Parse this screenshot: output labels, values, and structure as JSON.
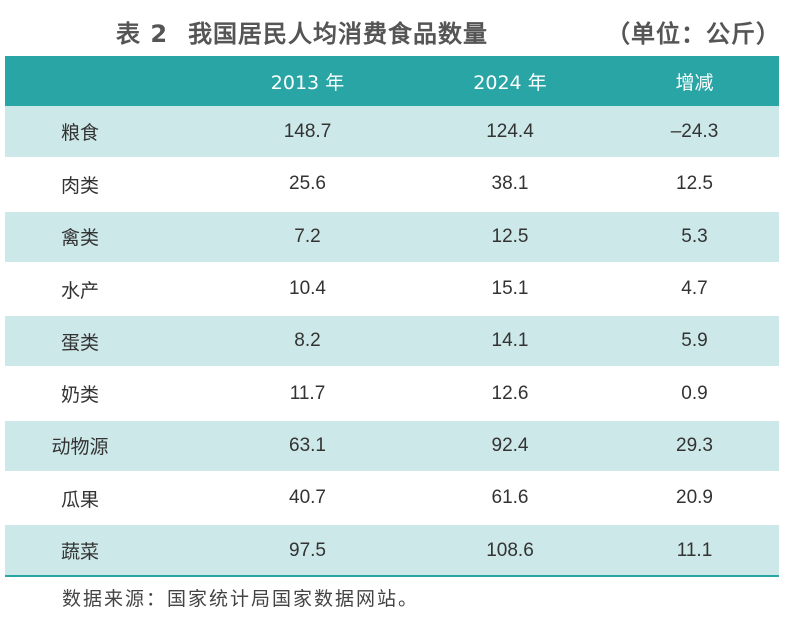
{
  "title": {
    "number": "表 2",
    "text": "我国居民人均消费食品数量",
    "unit": "（单位：公斤）"
  },
  "table": {
    "headers": [
      "",
      "2013 年",
      "2024 年",
      "增减"
    ],
    "rows": [
      {
        "category": "粮食",
        "y2013": "148.7",
        "y2024": "124.4",
        "change": "–24.3"
      },
      {
        "category": "肉类",
        "y2013": "25.6",
        "y2024": "38.1",
        "change": "12.5"
      },
      {
        "category": "禽类",
        "y2013": "7.2",
        "y2024": "12.5",
        "change": "5.3"
      },
      {
        "category": "水产",
        "y2013": "10.4",
        "y2024": "15.1",
        "change": "4.7"
      },
      {
        "category": "蛋类",
        "y2013": "8.2",
        "y2024": "14.1",
        "change": "5.9"
      },
      {
        "category": "奶类",
        "y2013": "11.7",
        "y2024": "12.6",
        "change": "0.9"
      },
      {
        "category": "动物源",
        "y2013": "63.1",
        "y2024": "92.4",
        "change": "29.3"
      },
      {
        "category": "瓜果",
        "y2013": "40.7",
        "y2024": "61.6",
        "change": "20.9"
      },
      {
        "category": "蔬菜",
        "y2013": "97.5",
        "y2024": "108.6",
        "change": "11.1"
      }
    ]
  },
  "source": "数据来源：国家统计局国家数据网站。",
  "colors": {
    "header_bg": "#2aa5a6",
    "row_shade": "#cde8e9",
    "text": "#333333"
  }
}
